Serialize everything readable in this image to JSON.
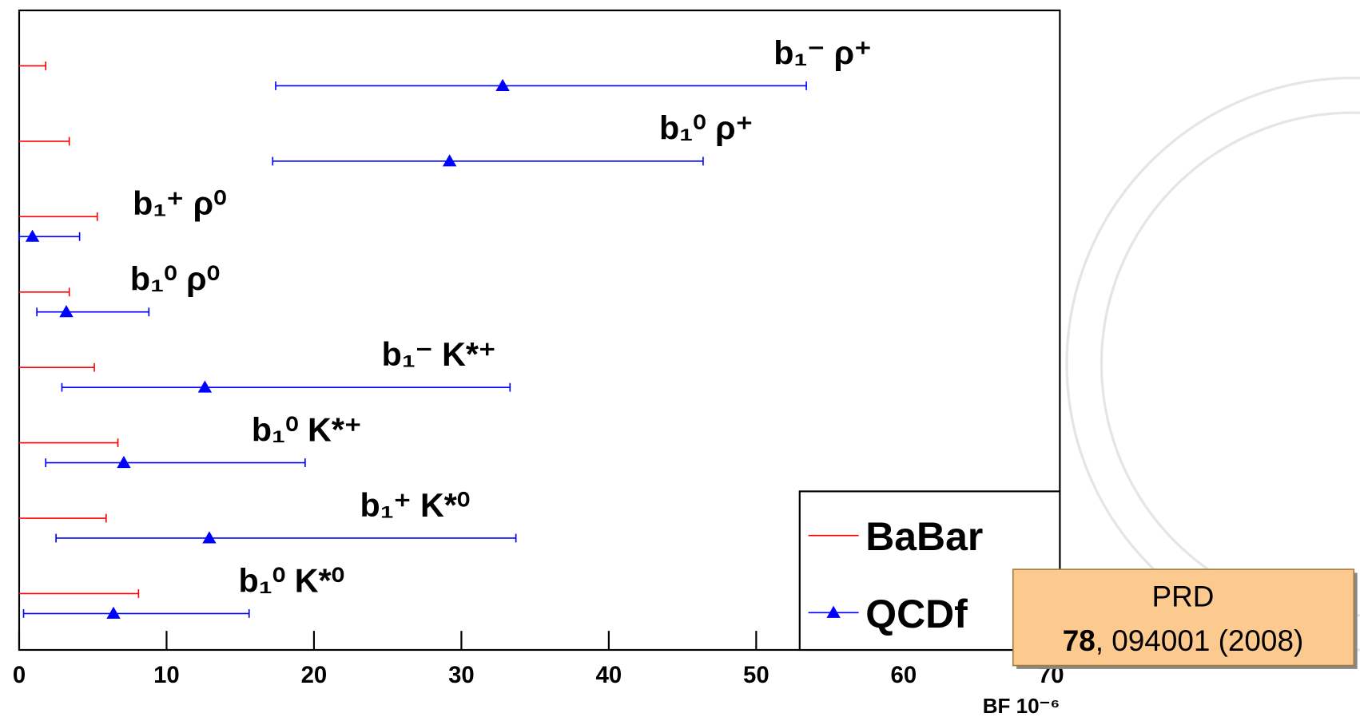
{
  "chart_data": {
    "type": "errorbar",
    "categories": [
      "b₁⁻ ρ⁺",
      "b₁⁰ ρ⁺",
      "b₁⁺ ρ⁰",
      "b₁⁰ ρ⁰",
      "b₁⁻ K*⁺",
      "b₁⁰ K*⁺",
      "b₁⁺ K*⁰",
      "b₁⁰ K*⁰"
    ],
    "series": [
      {
        "name": "BaBar",
        "color": "#ff0000",
        "kind": "upper-limit",
        "values": [
          1.8,
          3.4,
          5.3,
          3.4,
          5.1,
          6.7,
          5.9,
          8.1
        ]
      },
      {
        "name": "QCDf",
        "color": "#0000ff",
        "kind": "point",
        "values": [
          32.8,
          29.2,
          0.9,
          3.2,
          12.6,
          7.1,
          12.9,
          6.4
        ],
        "lower": [
          17.4,
          17.2,
          0,
          1.2,
          2.9,
          1.8,
          2.5,
          0.3
        ],
        "upper": [
          53.4,
          46.4,
          4.1,
          8.8,
          33.3,
          19.4,
          33.7,
          15.6
        ]
      }
    ],
    "x_label": "BF 10⁻⁶",
    "xlim": [
      0,
      70.6
    ],
    "xticks": [
      0,
      10,
      20,
      30,
      40,
      50,
      60,
      70
    ],
    "legend": "bottom-right",
    "note": {
      "line1": "PRD",
      "volume": "78",
      "rest": ", 094001 (2008)"
    }
  }
}
